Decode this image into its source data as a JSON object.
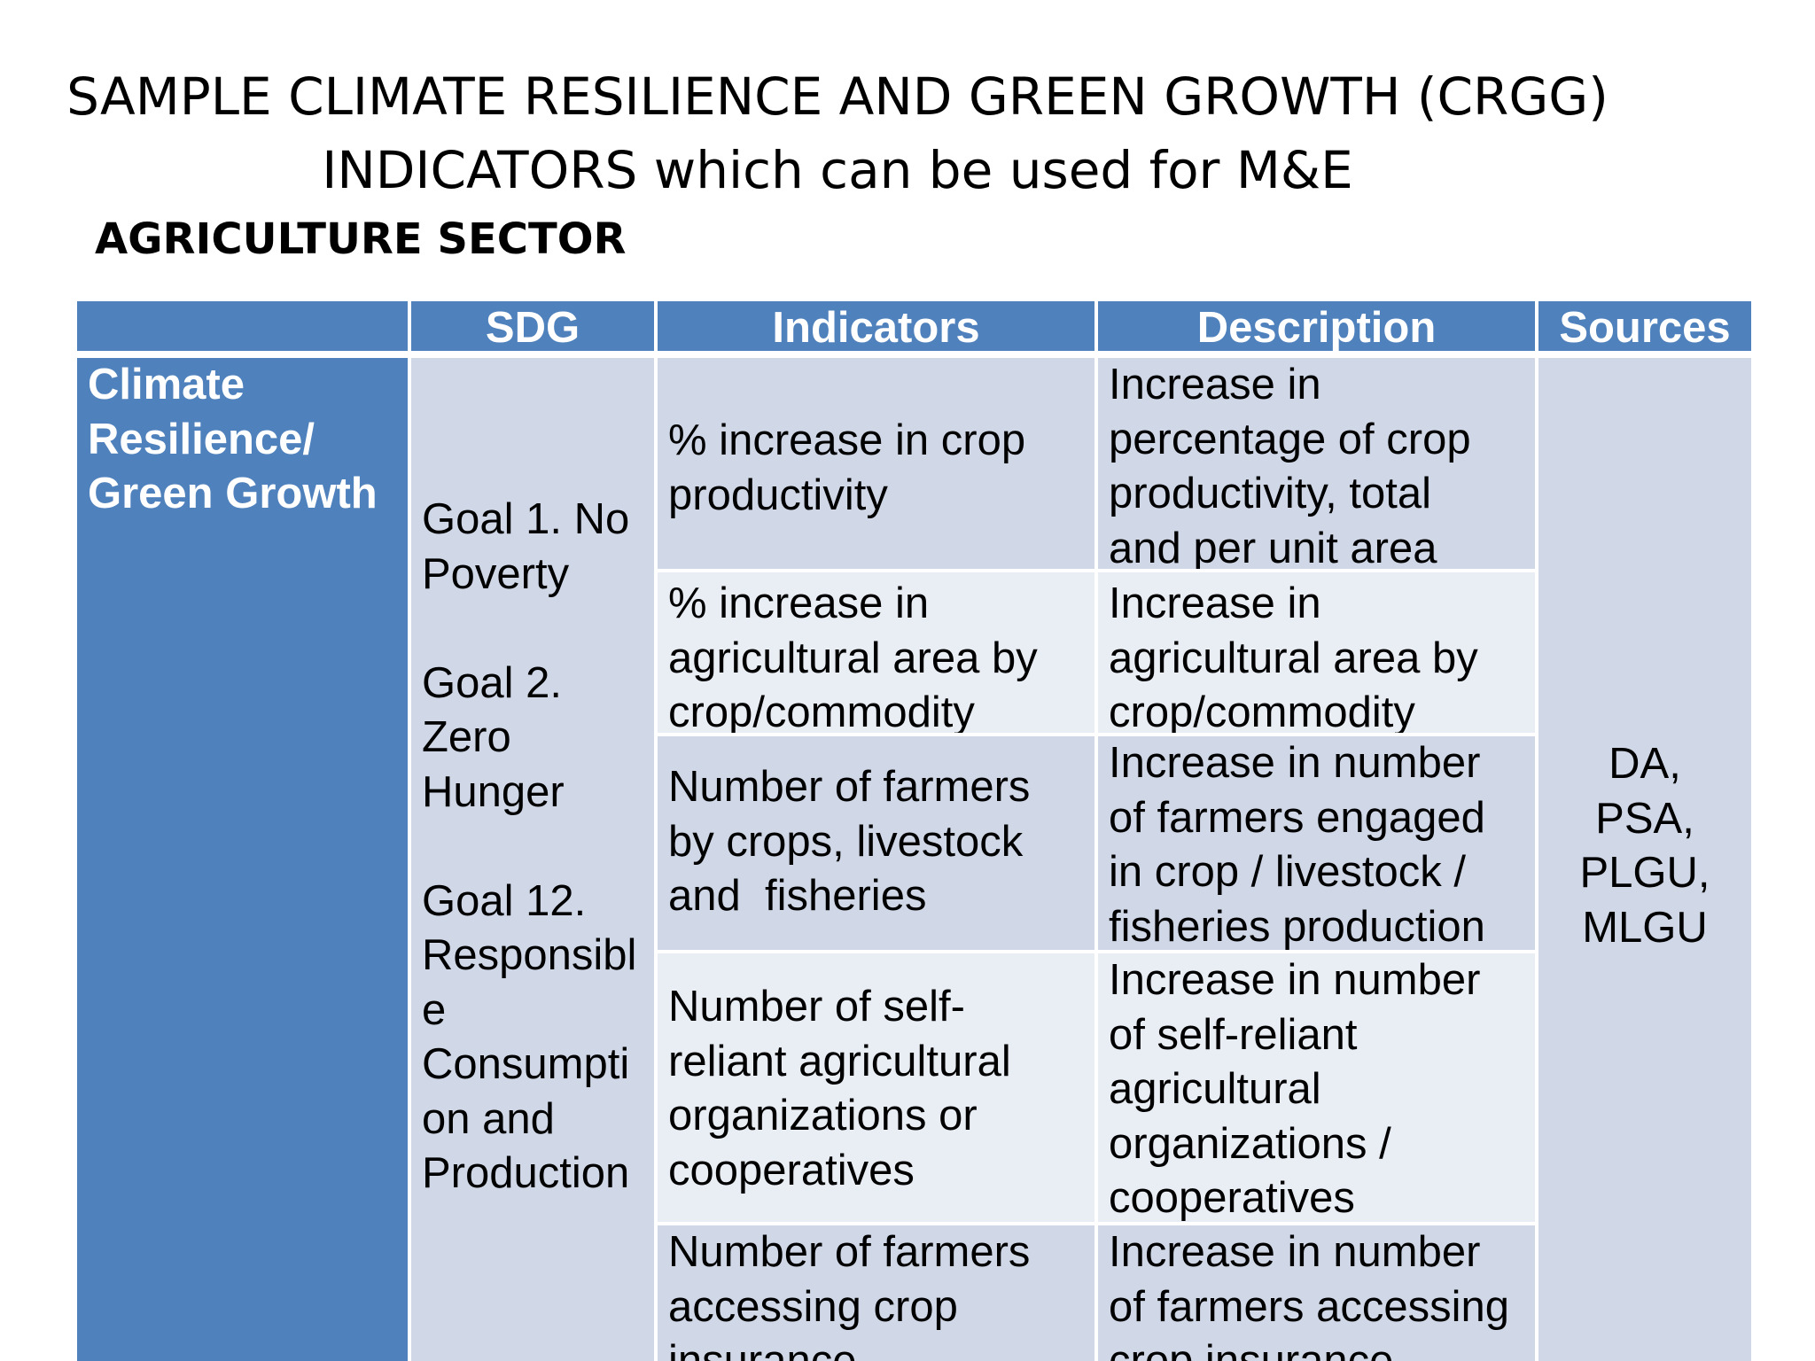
{
  "title": {
    "line1": "SAMPLE CLIMATE RESILIENCE AND GREEN GROWTH (CRGG)",
    "line2": "INDICATORS which can be used for M&E"
  },
  "sector": "AGRICULTURE SECTOR",
  "table": {
    "headers": [
      "",
      "SDG",
      "Indicators",
      "Description",
      "Sources"
    ],
    "category": "Climate Resilience/ Green Growth",
    "category_lines": [
      "Climate",
      "Resilience/",
      "Green Growth"
    ],
    "sdg_lines": [
      "Goal 1. No",
      "Poverty",
      "",
      "Goal 2.",
      "Zero",
      "Hunger",
      "",
      "Goal 12.",
      "Responsibl",
      "e",
      "Consumpti",
      "on and",
      "Production"
    ],
    "sources_lines": [
      "DA,",
      "PSA,",
      "PLGU,",
      "MLGU"
    ],
    "rows": [
      {
        "indicator_lines": [
          "% increase in crop",
          "productivity"
        ],
        "description_lines": [
          "Increase in",
          "percentage of crop",
          "productivity, total",
          "and per unit area"
        ]
      },
      {
        "indicator_lines": [
          "% increase in",
          "agricultural area by",
          "crop/commodity"
        ],
        "description_lines": [
          "Increase in",
          "agricultural area by",
          "crop/commodity"
        ]
      },
      {
        "indicator_lines": [
          "Number of farmers",
          "by crops, livestock",
          "and  fisheries"
        ],
        "description_lines": [
          "Increase in number",
          "of farmers engaged",
          "in crop / livestock /",
          "fisheries production"
        ]
      },
      {
        "indicator_lines": [
          "Number of self-",
          "reliant agricultural",
          "organizations or",
          "cooperatives"
        ],
        "description_lines": [
          "Increase in number",
          "of self-reliant",
          "agricultural",
          "organizations /",
          "cooperatives"
        ]
      },
      {
        "indicator_lines": [
          "Number of farmers",
          "accessing crop",
          "insurance"
        ],
        "description_lines": [
          "Increase in number",
          "of farmers accessing",
          "crop insurance"
        ]
      }
    ]
  }
}
